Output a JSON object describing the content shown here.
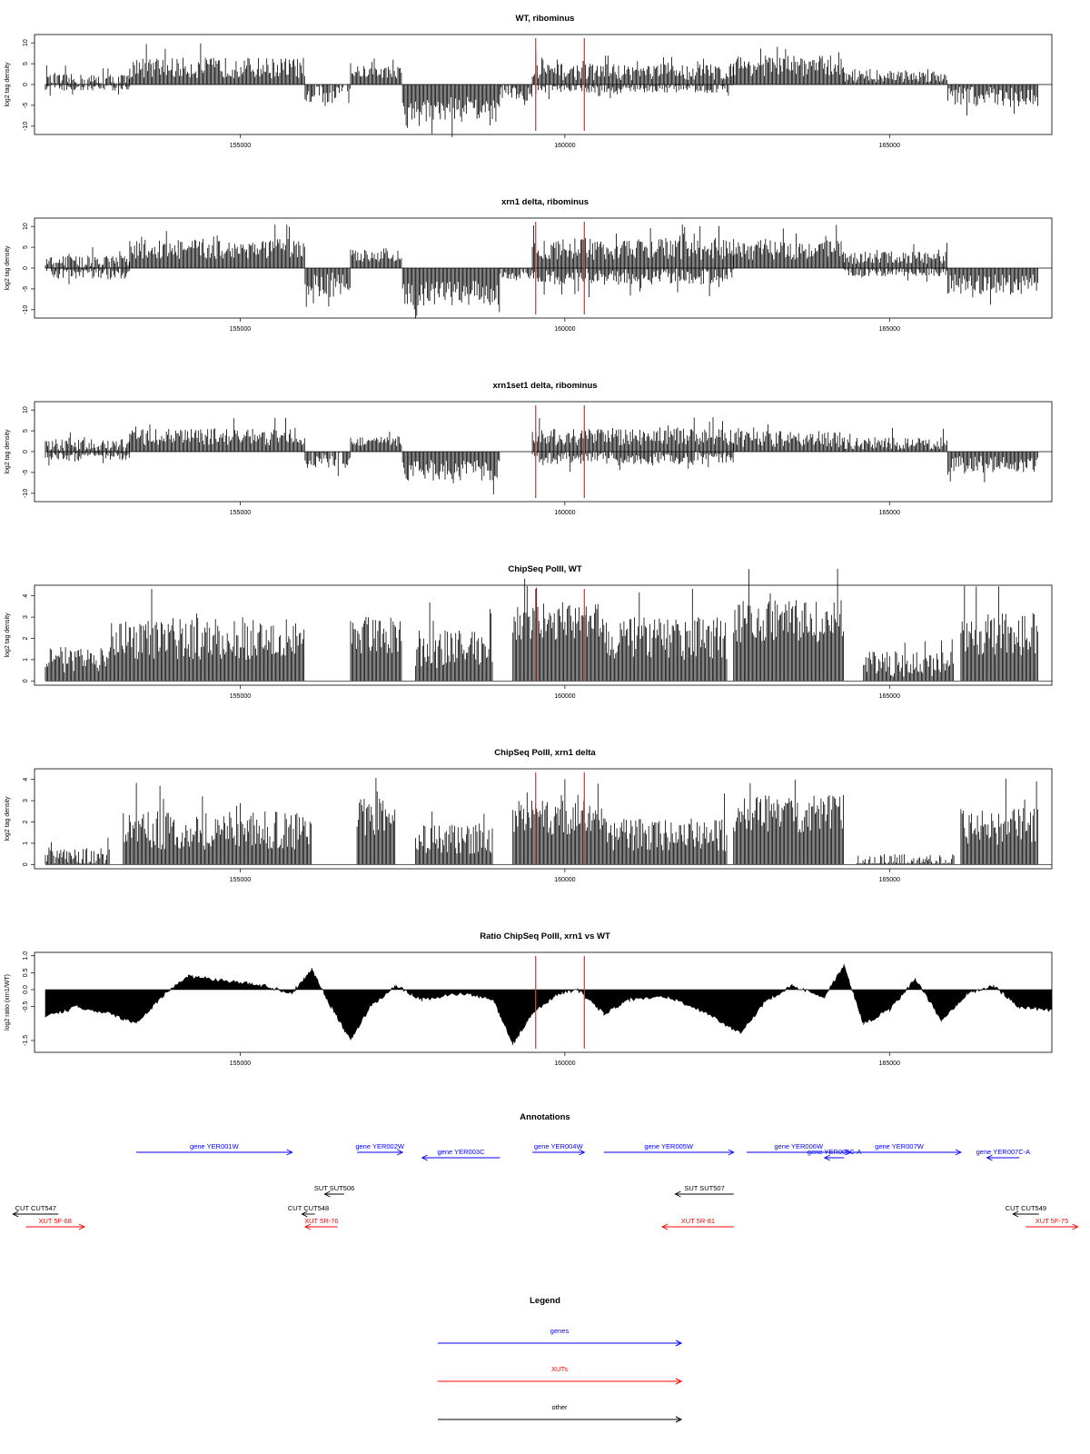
{
  "chart_data": [
    {
      "type": "bar",
      "title": "WT, ribominus",
      "ylabel": "log2 tag density",
      "xlim": [
        152000,
        167500
      ],
      "ylim": [
        -12,
        12
      ],
      "yticks": [
        -10,
        -5,
        0,
        5,
        10
      ],
      "xticks": [
        155000,
        160000,
        165000
      ],
      "xticklabels": [
        "155000",
        "160000",
        "165000"
      ],
      "markers_x": [
        159550,
        160300
      ],
      "segments": [
        {
          "x": [
            152000,
            153300
          ],
          "level": 1,
          "sign": 1,
          "noise": 1.5
        },
        {
          "x": [
            152000,
            153300
          ],
          "level": 0.5,
          "sign": -1,
          "noise": 1
        },
        {
          "x": [
            153300,
            156000
          ],
          "level": 4,
          "sign": 1,
          "noise": 2.5
        },
        {
          "x": [
            156000,
            156700
          ],
          "level": 1.5,
          "sign": -1,
          "noise": 3
        },
        {
          "x": [
            156700,
            157500
          ],
          "level": 3,
          "sign": 1,
          "noise": 1.5
        },
        {
          "x": [
            157500,
            159000
          ],
          "level": -6,
          "sign": -1,
          "noise": 3
        },
        {
          "x": [
            159000,
            159500
          ],
          "level": -2,
          "sign": -1,
          "noise": 2
        },
        {
          "x": [
            159500,
            162600
          ],
          "level": 3,
          "sign": 1,
          "noise": 2
        },
        {
          "x": [
            159500,
            162600
          ],
          "level": 0.8,
          "sign": -1,
          "noise": 1.2
        },
        {
          "x": [
            162600,
            164300
          ],
          "level": 4.5,
          "sign": 1,
          "noise": 2.5
        },
        {
          "x": [
            164300,
            165900
          ],
          "level": 2,
          "sign": 1,
          "noise": 1.5
        },
        {
          "x": [
            165900,
            167300
          ],
          "level": -3,
          "sign": -1,
          "noise": 2.5
        }
      ]
    },
    {
      "type": "bar",
      "title": "xrn1 delta, ribominus",
      "ylabel": "log2 tag density",
      "xlim": [
        152000,
        167500
      ],
      "ylim": [
        -12,
        12
      ],
      "yticks": [
        -10,
        -5,
        0,
        5,
        10
      ],
      "xticks": [
        155000,
        160000,
        165000
      ],
      "xticklabels": [
        "155000",
        "160000",
        "165000"
      ],
      "markers_x": [
        159550,
        160300
      ],
      "segments": [
        {
          "x": [
            152000,
            153300
          ],
          "level": 1.5,
          "sign": 1,
          "noise": 1.5
        },
        {
          "x": [
            152000,
            153300
          ],
          "level": 1.2,
          "sign": -1,
          "noise": 1.5
        },
        {
          "x": [
            153300,
            156000
          ],
          "level": 4.5,
          "sign": 1,
          "noise": 2.5
        },
        {
          "x": [
            156000,
            156700
          ],
          "level": 4,
          "sign": -1,
          "noise": 3
        },
        {
          "x": [
            156700,
            157500
          ],
          "level": 3,
          "sign": 1,
          "noise": 1.5
        },
        {
          "x": [
            157500,
            159000
          ],
          "level": -6,
          "sign": -1,
          "noise": 3
        },
        {
          "x": [
            159000,
            159500
          ],
          "level": -1.5,
          "sign": -1,
          "noise": 1.5
        },
        {
          "x": [
            159500,
            162600
          ],
          "level": 4.5,
          "sign": 1,
          "noise": 2.5
        },
        {
          "x": [
            159500,
            162600
          ],
          "level": 2,
          "sign": -1,
          "noise": 2
        },
        {
          "x": [
            162600,
            164300
          ],
          "level": 4.5,
          "sign": 1,
          "noise": 2.5
        },
        {
          "x": [
            164300,
            165900
          ],
          "level": 2.5,
          "sign": 1,
          "noise": 1.5
        },
        {
          "x": [
            164300,
            165900
          ],
          "level": 1,
          "sign": -1,
          "noise": 1
        },
        {
          "x": [
            165900,
            167300
          ],
          "level": -4,
          "sign": -1,
          "noise": 2.5
        }
      ]
    },
    {
      "type": "bar",
      "title": "xrn1set1 delta, ribominus",
      "ylabel": "log2 tag density",
      "xlim": [
        152000,
        167500
      ],
      "ylim": [
        -12,
        12
      ],
      "yticks": [
        -10,
        -5,
        0,
        5,
        10
      ],
      "xticks": [
        155000,
        160000,
        165000
      ],
      "xticklabels": [
        "155000",
        "160000",
        "165000"
      ],
      "markers_x": [
        159550,
        160300
      ],
      "segments": [
        {
          "x": [
            152000,
            153300
          ],
          "level": 1.5,
          "sign": 1,
          "noise": 1.5
        },
        {
          "x": [
            152000,
            153300
          ],
          "level": 1,
          "sign": -1,
          "noise": 1
        },
        {
          "x": [
            153300,
            156000
          ],
          "level": 3.5,
          "sign": 1,
          "noise": 2
        },
        {
          "x": [
            156000,
            156700
          ],
          "level": 2,
          "sign": -1,
          "noise": 2
        },
        {
          "x": [
            156700,
            157500
          ],
          "level": 2.5,
          "sign": 1,
          "noise": 1.2
        },
        {
          "x": [
            157500,
            159000
          ],
          "level": -4.5,
          "sign": -1,
          "noise": 2.5
        },
        {
          "x": [
            159500,
            162600
          ],
          "level": 3.5,
          "sign": 1,
          "noise": 2
        },
        {
          "x": [
            159500,
            162600
          ],
          "level": 1.5,
          "sign": -1,
          "noise": 1.5
        },
        {
          "x": [
            162600,
            164300
          ],
          "level": 3,
          "sign": 1,
          "noise": 2
        },
        {
          "x": [
            164300,
            165900
          ],
          "level": 2,
          "sign": 1,
          "noise": 1.5
        },
        {
          "x": [
            165900,
            167300
          ],
          "level": -3,
          "sign": -1,
          "noise": 2
        }
      ]
    },
    {
      "type": "bar",
      "title": "ChipSeq PolII, WT",
      "ylabel": "log2 tag density",
      "xlim": [
        152000,
        167500
      ],
      "ylim": [
        -0.2,
        4.5
      ],
      "yticks": [
        0,
        1,
        2,
        3,
        4
      ],
      "xticks": [
        155000,
        160000,
        165000
      ],
      "xticklabels": [
        "155000",
        "160000",
        "165000"
      ],
      "markers_x": [
        159550,
        160300
      ],
      "segments": [
        {
          "x": [
            152000,
            153000
          ],
          "level": 1,
          "sign": 1,
          "noise": 0.6
        },
        {
          "x": [
            153000,
            156000
          ],
          "level": 2,
          "sign": 1,
          "noise": 1
        },
        {
          "x": [
            156700,
            157500
          ],
          "level": 2.2,
          "sign": 1,
          "noise": 0.9
        },
        {
          "x": [
            157700,
            158900
          ],
          "level": 1.5,
          "sign": 1,
          "noise": 0.9
        },
        {
          "x": [
            159200,
            160600
          ],
          "level": 2.8,
          "sign": 1,
          "noise": 0.9
        },
        {
          "x": [
            160600,
            162500
          ],
          "level": 2,
          "sign": 1,
          "noise": 1
        },
        {
          "x": [
            162600,
            164300
          ],
          "level": 2.8,
          "sign": 1,
          "noise": 1
        },
        {
          "x": [
            164600,
            166000
          ],
          "level": 0.8,
          "sign": 1,
          "noise": 0.6
        },
        {
          "x": [
            166100,
            167300
          ],
          "level": 2.2,
          "sign": 1,
          "noise": 1
        }
      ]
    },
    {
      "type": "bar",
      "title": "ChipSeq PolII, xrn1 delta",
      "ylabel": "log2 tag density",
      "xlim": [
        152000,
        167500
      ],
      "ylim": [
        -0.2,
        4.5
      ],
      "yticks": [
        0,
        1,
        2,
        3,
        4
      ],
      "xticks": [
        155000,
        160000,
        165000
      ],
      "xticklabels": [
        "155000",
        "160000",
        "165000"
      ],
      "markers_x": [
        159550,
        160300
      ],
      "segments": [
        {
          "x": [
            152000,
            153000
          ],
          "level": 0.4,
          "sign": 1,
          "noise": 0.4
        },
        {
          "x": [
            153200,
            156100
          ],
          "level": 1.6,
          "sign": 1,
          "noise": 0.9
        },
        {
          "x": [
            156800,
            157400
          ],
          "level": 2.2,
          "sign": 1,
          "noise": 0.9
        },
        {
          "x": [
            157700,
            158900
          ],
          "level": 1.2,
          "sign": 1,
          "noise": 0.7
        },
        {
          "x": [
            159200,
            160600
          ],
          "level": 2.2,
          "sign": 1,
          "noise": 0.8
        },
        {
          "x": [
            160600,
            162500
          ],
          "level": 1.4,
          "sign": 1,
          "noise": 0.8
        },
        {
          "x": [
            162600,
            164300
          ],
          "level": 2.4,
          "sign": 1,
          "noise": 0.9
        },
        {
          "x": [
            164500,
            166000
          ],
          "level": 0.2,
          "sign": 1,
          "noise": 0.3
        },
        {
          "x": [
            166100,
            167300
          ],
          "level": 1.8,
          "sign": 1,
          "noise": 0.9
        }
      ]
    },
    {
      "type": "area",
      "title": "Ratio ChipSeq PolII, xrn1 vs WT",
      "ylabel": "log2 ratio (xrn1/WT)",
      "xlim": [
        152000,
        167500
      ],
      "ylim": [
        -1.85,
        1.1
      ],
      "yticks": [
        -1.5,
        -0.5,
        0.0,
        0.5,
        1.0
      ],
      "yticklabels": [
        "-1.5",
        "-0.5",
        "0.0",
        "0.5",
        "1.0"
      ],
      "xticks": [
        155000,
        160000,
        165000
      ],
      "xticklabels": [
        "155000",
        "160000",
        "165000"
      ],
      "markers_x": [
        159550,
        160300
      ],
      "profile": [
        [
          152000,
          -0.8
        ],
        [
          152500,
          -0.5
        ],
        [
          153000,
          -0.7
        ],
        [
          153400,
          -1.0
        ],
        [
          153800,
          -0.2
        ],
        [
          154200,
          0.4
        ],
        [
          154600,
          0.3
        ],
        [
          155000,
          0.2
        ],
        [
          155400,
          0.1
        ],
        [
          155800,
          -0.1
        ],
        [
          156100,
          0.6
        ],
        [
          156400,
          -0.5
        ],
        [
          156700,
          -1.5
        ],
        [
          157000,
          -0.5
        ],
        [
          157400,
          0.1
        ],
        [
          157800,
          -0.3
        ],
        [
          158400,
          -0.1
        ],
        [
          158900,
          -0.3
        ],
        [
          159200,
          -1.6
        ],
        [
          159500,
          -0.7
        ],
        [
          159900,
          -0.1
        ],
        [
          160200,
          0.0
        ],
        [
          160600,
          -0.7
        ],
        [
          161000,
          -0.3
        ],
        [
          161600,
          -0.2
        ],
        [
          162200,
          -0.7
        ],
        [
          162700,
          -1.3
        ],
        [
          163100,
          -0.3
        ],
        [
          163500,
          0.1
        ],
        [
          164000,
          -0.2
        ],
        [
          164300,
          0.7
        ],
        [
          164600,
          -1.0
        ],
        [
          165000,
          -0.6
        ],
        [
          165400,
          0.3
        ],
        [
          165800,
          -0.9
        ],
        [
          166200,
          -0.1
        ],
        [
          166600,
          0.1
        ],
        [
          167000,
          -0.5
        ],
        [
          167500,
          -0.6
        ]
      ]
    }
  ],
  "annotations": {
    "title": "Annotations",
    "xlim": [
      152000,
      167500
    ],
    "colors": {
      "genes": "#0000ff",
      "xuts": "#ff0000",
      "other": "#000000"
    },
    "features": [
      {
        "label": "gene YER001W",
        "kind": "genes",
        "start": 153400,
        "end": 155800,
        "strand": "+",
        "row": 0
      },
      {
        "label": "gene YER002W",
        "kind": "genes",
        "start": 156800,
        "end": 157500,
        "strand": "+",
        "row": 0
      },
      {
        "label": "gene YER003C",
        "kind": "genes",
        "start": 157800,
        "end": 159000,
        "strand": "-",
        "row": 1
      },
      {
        "label": "gene YER004W",
        "kind": "genes",
        "start": 159500,
        "end": 160300,
        "strand": "+",
        "row": 0
      },
      {
        "label": "gene YER005W",
        "kind": "genes",
        "start": 160600,
        "end": 162600,
        "strand": "+",
        "row": 0
      },
      {
        "label": "gene YER006W",
        "kind": "genes",
        "start": 162800,
        "end": 164400,
        "strand": "+",
        "row": 0
      },
      {
        "label": "gene YER006C-A",
        "kind": "genes",
        "start": 164000,
        "end": 164300,
        "strand": "-",
        "row": 1
      },
      {
        "label": "gene YER007W",
        "kind": "genes",
        "start": 164200,
        "end": 166100,
        "strand": "+",
        "row": 0
      },
      {
        "label": "gene YER007C-A",
        "kind": "genes",
        "start": 166500,
        "end": 167000,
        "strand": "-",
        "row": 1
      },
      {
        "label": "SUT SUT506",
        "kind": "other",
        "start": 156300,
        "end": 156600,
        "strand": "-",
        "row": 2
      },
      {
        "label": "SUT SUT507",
        "kind": "other",
        "start": 161700,
        "end": 162600,
        "strand": "-",
        "row": 2
      },
      {
        "label": "CUT CUT547",
        "kind": "other",
        "start": 151500,
        "end": 152200,
        "strand": "-",
        "row": 3
      },
      {
        "label": "CUT CUT548",
        "kind": "other",
        "start": 155950,
        "end": 156150,
        "strand": "-",
        "row": 3
      },
      {
        "label": "CUT CUT549",
        "kind": "other",
        "start": 166900,
        "end": 167300,
        "strand": "-",
        "row": 3
      },
      {
        "label": "XUT 5F-68",
        "kind": "xuts",
        "start": 151700,
        "end": 152600,
        "strand": "+",
        "row": 4
      },
      {
        "label": "XUT 5R-76",
        "kind": "xuts",
        "start": 156000,
        "end": 156500,
        "strand": "-",
        "row": 4
      },
      {
        "label": "XUT 5R-81",
        "kind": "xuts",
        "start": 161500,
        "end": 162600,
        "strand": "-",
        "row": 4
      },
      {
        "label": "XUT 5F-75",
        "kind": "xuts",
        "start": 167100,
        "end": 167900,
        "strand": "+",
        "row": 4
      }
    ]
  },
  "legend": {
    "title": "Legend",
    "items": [
      {
        "label": "genes",
        "color": "#0000ff"
      },
      {
        "label": "XUTs",
        "color": "#ff0000"
      },
      {
        "label": "other",
        "color": "#000000"
      }
    ]
  }
}
